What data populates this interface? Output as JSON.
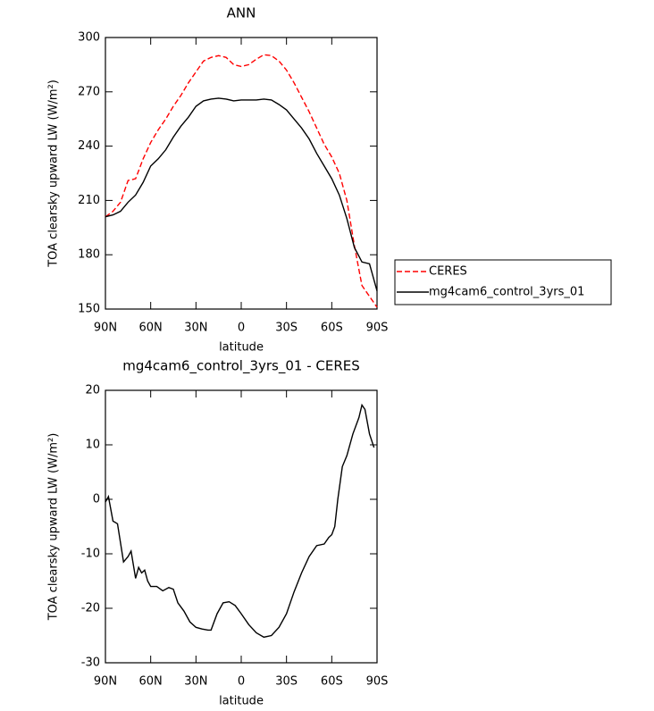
{
  "chart_data": [
    {
      "type": "line",
      "title": "ANN",
      "ylabel": "TOA clearsky upward LW (W/m²)",
      "xlabel": "latitude",
      "xlim": [
        90,
        -90
      ],
      "xticks": [
        {
          "value": 90,
          "label": "90N"
        },
        {
          "value": 60,
          "label": "60N"
        },
        {
          "value": 30,
          "label": "30N"
        },
        0,
        {
          "value": -30,
          "label": "30S"
        },
        {
          "value": -60,
          "label": "60S"
        },
        {
          "value": -90,
          "label": "90S"
        }
      ],
      "ylim": [
        150,
        300
      ],
      "yticks": [
        150,
        180,
        210,
        240,
        270,
        300
      ],
      "legend": "right",
      "series": [
        {
          "name": "CERES",
          "color": "#ff0000",
          "linestyle": "dashed",
          "x": [
            90,
            85,
            80,
            75,
            70,
            65,
            60,
            55,
            50,
            45,
            40,
            35,
            30,
            25,
            20,
            15,
            10,
            5,
            0,
            -5,
            -10,
            -15,
            -20,
            -25,
            -30,
            -35,
            -40,
            -45,
            -50,
            -55,
            -60,
            -65,
            -70,
            -75,
            -80,
            -85,
            -90
          ],
          "values": [
            201,
            204,
            209,
            221,
            222,
            233,
            242,
            249,
            255,
            262,
            268,
            275,
            281,
            287,
            289,
            290,
            289,
            285,
            284,
            285,
            288,
            290.5,
            290,
            287,
            282,
            275,
            267,
            259,
            250,
            241,
            234,
            225,
            210,
            185,
            163,
            157,
            151
          ]
        },
        {
          "name": "mg4cam6_control_3yrs_01",
          "color": "#000000",
          "linestyle": "solid",
          "x": [
            90,
            85,
            80,
            75,
            70,
            65,
            60,
            55,
            50,
            45,
            40,
            35,
            30,
            25,
            20,
            15,
            10,
            5,
            0,
            -5,
            -10,
            -15,
            -20,
            -25,
            -30,
            -35,
            -40,
            -45,
            -50,
            -55,
            -60,
            -65,
            -70,
            -75,
            -80,
            -85,
            -90
          ],
          "values": [
            201,
            202,
            204,
            209,
            213,
            220,
            229,
            233,
            238,
            245,
            251,
            256,
            262,
            265,
            266,
            266.5,
            266,
            265,
            265.5,
            265.5,
            265.5,
            266,
            265.5,
            263,
            260,
            255,
            250,
            244,
            236,
            229,
            222,
            213,
            200,
            184,
            176,
            175,
            160
          ]
        }
      ]
    },
    {
      "type": "line",
      "title": "mg4cam6_control_3yrs_01 - CERES",
      "ylabel": "TOA clearsky upward LW (W/m²)",
      "xlabel": "latitude",
      "xlim": [
        90,
        -90
      ],
      "xticks": [
        {
          "value": 90,
          "label": "90N"
        },
        {
          "value": 60,
          "label": "60N"
        },
        {
          "value": 30,
          "label": "30N"
        },
        0,
        {
          "value": -30,
          "label": "30S"
        },
        {
          "value": -60,
          "label": "60S"
        },
        {
          "value": -90,
          "label": "90S"
        }
      ],
      "ylim": [
        -30,
        20
      ],
      "yticks": [
        -30,
        -20,
        -10,
        0,
        10,
        20
      ],
      "series": [
        {
          "color": "#000000",
          "linestyle": "solid",
          "x": [
            90,
            88,
            85,
            82,
            78,
            75,
            73,
            70,
            68,
            66,
            64,
            62,
            60,
            56,
            52,
            48,
            45,
            42,
            38,
            34,
            30,
            26,
            22,
            20,
            16,
            12,
            8,
            4,
            0,
            -5,
            -10,
            -15,
            -20,
            -25,
            -30,
            -35,
            -40,
            -45,
            -50,
            -55,
            -58,
            -60,
            -62,
            -64,
            -67,
            -70,
            -74,
            -78,
            -80,
            -82,
            -85,
            -88
          ],
          "values": [
            -0.5,
            0.5,
            -4,
            -4.5,
            -11.5,
            -10.5,
            -9.5,
            -14.5,
            -12.5,
            -13.5,
            -13,
            -15,
            -16,
            -16,
            -16.8,
            -16.2,
            -16.5,
            -19,
            -20.5,
            -22.5,
            -23.5,
            -23.8,
            -24,
            -24,
            -21,
            -19,
            -18.8,
            -19.5,
            -21,
            -23,
            -24.5,
            -25.3,
            -25,
            -23.5,
            -21,
            -17,
            -13.5,
            -10.5,
            -8.5,
            -8.2,
            -7,
            -6.5,
            -5,
            0,
            6,
            8,
            12,
            15,
            17.3,
            16.5,
            12,
            9.5
          ]
        }
      ]
    }
  ]
}
